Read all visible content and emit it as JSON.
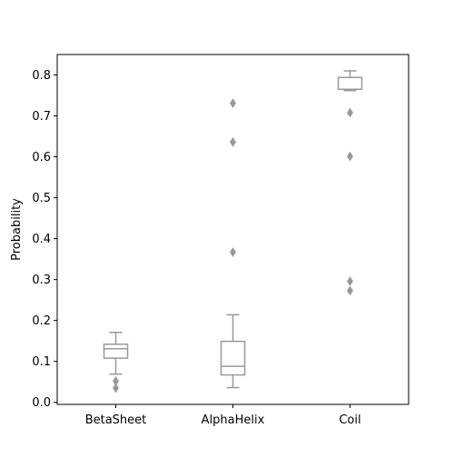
{
  "chart_data": {
    "type": "box",
    "title": "",
    "xlabel": "",
    "ylabel": "Probability",
    "ylim": [
      -0.005,
      0.85
    ],
    "yticks": [
      {
        "value": 0.0,
        "label": "0.0"
      },
      {
        "value": 0.1,
        "label": "0.1"
      },
      {
        "value": 0.2,
        "label": "0.2"
      },
      {
        "value": 0.3,
        "label": "0.3"
      },
      {
        "value": 0.4,
        "label": "0.4"
      },
      {
        "value": 0.5,
        "label": "0.5"
      },
      {
        "value": 0.6,
        "label": "0.6"
      },
      {
        "value": 0.7,
        "label": "0.7"
      },
      {
        "value": 0.8,
        "label": "0.8"
      }
    ],
    "categories": [
      "BetaSheet",
      "AlphaHelix",
      "Coil"
    ],
    "boxes": [
      {
        "category": "BetaSheet",
        "whisker_low": 0.069,
        "q1": 0.108,
        "median": 0.131,
        "q3": 0.142,
        "whisker_high": 0.171,
        "outliers": [
          0.052,
          0.035
        ]
      },
      {
        "category": "AlphaHelix",
        "whisker_low": 0.036,
        "q1": 0.067,
        "median": 0.088,
        "q3": 0.149,
        "whisker_high": 0.214,
        "outliers": [
          0.731,
          0.636,
          0.367
        ]
      },
      {
        "category": "Coil",
        "whisker_low": 0.762,
        "q1": 0.765,
        "median": 0.765,
        "q3": 0.794,
        "whisker_high": 0.81,
        "outliers": [
          0.708,
          0.601,
          0.296,
          0.273
        ]
      }
    ],
    "colors": {
      "box": "#999999",
      "outlier": "#999999",
      "axes": "#000000"
    },
    "grid": false,
    "legend": "none"
  }
}
